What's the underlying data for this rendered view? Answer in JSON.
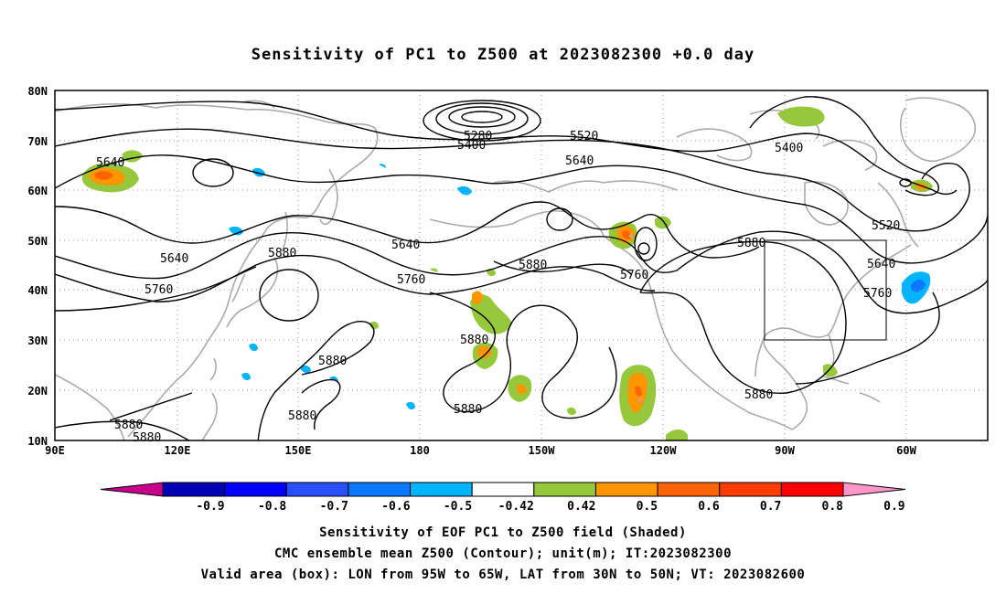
{
  "title": "Sensitivity of PC1 to Z500 at 2023082300 +0.0 day",
  "lat_labels": [
    "80N",
    "70N",
    "60N",
    "50N",
    "40N",
    "30N",
    "20N",
    "10N"
  ],
  "lon_labels": [
    "90E",
    "120E",
    "150E",
    "180",
    "150W",
    "120W",
    "90W",
    "60W"
  ],
  "contour_labels": [
    "5280",
    "5400",
    "5520",
    "5640",
    "5400",
    "5640",
    "5520",
    "5640",
    "5640",
    "5760",
    "5880",
    "5880",
    "5760",
    "5880",
    "5640",
    "5760",
    "5760",
    "5880",
    "5880",
    "5880",
    "5880",
    "5880",
    "5880",
    "5880"
  ],
  "colorbar": {
    "labels": [
      "-0.9",
      "-0.8",
      "-0.7",
      "-0.6",
      "-0.5",
      "-0.42",
      "0.42",
      "0.5",
      "0.6",
      "0.7",
      "0.8",
      "0.9"
    ],
    "colors": [
      "#c8008c",
      "#0000b4",
      "#0000ff",
      "#2850ff",
      "#0a78ff",
      "#00b4ff",
      "#ffffff",
      "#96c83c",
      "#ff9600",
      "#ff6400",
      "#ff3c00",
      "#ff0000",
      "#ff96c8"
    ]
  },
  "captions": [
    "Sensitivity of EOF PC1 to Z500 field (Shaded)",
    "CMC ensemble mean Z500 (Contour); unit(m); IT:2023082300",
    "Valid area (box): LON from 95W to 65W, LAT from 30N to 50N; VT: 2023082600"
  ]
}
